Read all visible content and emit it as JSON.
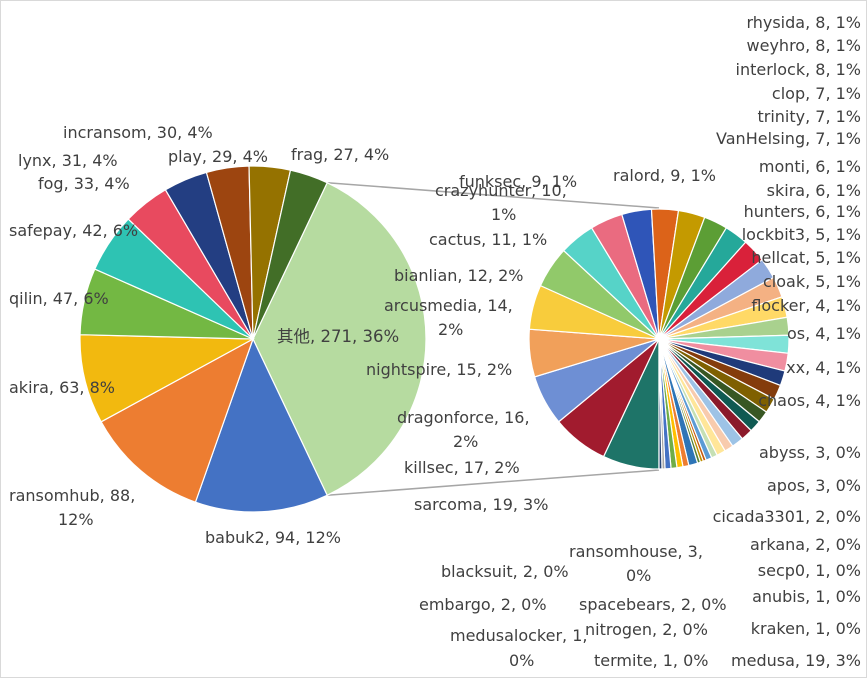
{
  "chart_data": {
    "type": "pie",
    "subtype": "pie-of-pie",
    "title": "",
    "main_pie": {
      "slices": [
        {
          "name": "其他",
          "value": 271,
          "percent": "36%",
          "color": "#b6dba0"
        },
        {
          "name": "babuk2",
          "value": 94,
          "percent": "12%",
          "color": "#4472c4"
        },
        {
          "name": "ransomhub",
          "value": 88,
          "percent": "12%",
          "color": "#ed7d31"
        },
        {
          "name": "akira",
          "value": 63,
          "percent": "8%",
          "color": "#f2b90f"
        },
        {
          "name": "qilin",
          "value": 47,
          "percent": "6%",
          "color": "#73b843"
        },
        {
          "name": "safepay",
          "value": 42,
          "percent": "6%",
          "color": "#2ec3b3"
        },
        {
          "name": "fog",
          "value": 33,
          "percent": "4%",
          "color": "#e84a5f"
        },
        {
          "name": "lynx",
          "value": 31,
          "percent": "4%",
          "color": "#233e82"
        },
        {
          "name": "incransom",
          "value": 30,
          "percent": "4%",
          "color": "#9d4510"
        },
        {
          "name": "play",
          "value": 29,
          "percent": "4%",
          "color": "#957200"
        },
        {
          "name": "frag",
          "value": 27,
          "percent": "4%",
          "color": "#426e27"
        }
      ]
    },
    "secondary_pie": {
      "slices": [
        {
          "name": "medusa",
          "value": 19,
          "percent": "3%",
          "color": "#1e7468"
        },
        {
          "name": "sarcoma",
          "value": 19,
          "percent": "3%",
          "color": "#a11b2e"
        },
        {
          "name": "killsec",
          "value": 17,
          "percent": "2%",
          "color": "#6e8fd4"
        },
        {
          "name": "dragonforce",
          "value": 16,
          "percent": "2%",
          "color": "#f1a05a"
        },
        {
          "name": "nightspire",
          "value": 15,
          "percent": "2%",
          "color": "#f8cc3c"
        },
        {
          "name": "arcusmedia",
          "value": 14,
          "percent": "2%",
          "color": "#91c96a"
        },
        {
          "name": "bianlian",
          "value": 12,
          "percent": "2%",
          "color": "#56d3c8"
        },
        {
          "name": "cactus",
          "value": 11,
          "percent": "1%",
          "color": "#ea6b80"
        },
        {
          "name": "crazyhunter",
          "value": 10,
          "percent": "1%",
          "color": "#2f55b8"
        },
        {
          "name": "funksec",
          "value": 9,
          "percent": "1%",
          "color": "#dc6319"
        },
        {
          "name": "ralord",
          "value": 9,
          "percent": "1%",
          "color": "#c49a00"
        },
        {
          "name": "rhysida",
          "value": 8,
          "percent": "1%",
          "color": "#5c9e35"
        },
        {
          "name": "weyhro",
          "value": 8,
          "percent": "1%",
          "color": "#25a89a"
        },
        {
          "name": "interlock",
          "value": 8,
          "percent": "1%",
          "color": "#d9213a"
        },
        {
          "name": "clop",
          "value": 7,
          "percent": "1%",
          "color": "#8faadc"
        },
        {
          "name": "trinity",
          "value": 7,
          "percent": "1%",
          "color": "#f4b183"
        },
        {
          "name": "VanHelsing",
          "value": 7,
          "percent": "1%",
          "color": "#ffd966"
        },
        {
          "name": "monti",
          "value": 6,
          "percent": "1%",
          "color": "#a9d18e"
        },
        {
          "name": "skira",
          "value": 6,
          "percent": "1%",
          "color": "#7fe3d8"
        },
        {
          "name": "hunters",
          "value": 6,
          "percent": "1%",
          "color": "#f08ea0"
        },
        {
          "name": "lockbit3",
          "value": 5,
          "percent": "1%",
          "color": "#1f3a7a"
        },
        {
          "name": "hellcat",
          "value": 5,
          "percent": "1%",
          "color": "#843c0c"
        },
        {
          "name": "cloak",
          "value": 5,
          "percent": "1%",
          "color": "#7f6000"
        },
        {
          "name": "flocker",
          "value": 4,
          "percent": "1%",
          "color": "#385723"
        },
        {
          "name": "…os",
          "value": 4,
          "percent": "1%",
          "color": "#0f5a52"
        },
        {
          "name": "…xx",
          "value": 4,
          "percent": "1%",
          "color": "#8b1a2b"
        },
        {
          "name": "chaos",
          "value": 4,
          "percent": "1%",
          "color": "#9dc3e6"
        },
        {
          "name": "abyss",
          "value": 3,
          "percent": "0%",
          "color": "#f8cbad"
        },
        {
          "name": "apos",
          "value": 3,
          "percent": "0%",
          "color": "#ffe699"
        },
        {
          "name": "cicada3301",
          "value": 2,
          "percent": "0%",
          "color": "#c5e0b4"
        },
        {
          "name": "arkana",
          "value": 2,
          "percent": "0%",
          "color": "#5b9bd5"
        },
        {
          "name": "secp0",
          "value": 1,
          "percent": "0%",
          "color": "#c55a11"
        },
        {
          "name": "anubis",
          "value": 1,
          "percent": "0%",
          "color": "#bf9000"
        },
        {
          "name": "kraken",
          "value": 1,
          "percent": "0%",
          "color": "#548235"
        },
        {
          "name": "ransomhouse",
          "value": 3,
          "percent": "0%",
          "color": "#2e75b6"
        },
        {
          "name": "blacksuit",
          "value": 2,
          "percent": "0%",
          "color": "#ed7d31"
        },
        {
          "name": "spacebears",
          "value": 2,
          "percent": "0%",
          "color": "#ffc000"
        },
        {
          "name": "embargo",
          "value": 2,
          "percent": "0%",
          "color": "#70ad47"
        },
        {
          "name": "nitrogen",
          "value": 2,
          "percent": "0%",
          "color": "#4472c4"
        },
        {
          "name": "medusalocker",
          "value": 1,
          "percent": "0%",
          "color": "#a5a5a5"
        },
        {
          "name": "termite",
          "value": 1,
          "percent": "0%",
          "color": "#264478"
        }
      ]
    },
    "labels": {
      "main": {
        "其他": "其他, 271, 36%",
        "babuk2": "babuk2, 94, 12%",
        "ransomhub_1": "ransomhub, 88,",
        "ransomhub_2": "12%",
        "akira": "akira, 63, 8%",
        "qilin": "qilin, 47, 6%",
        "safepay": "safepay, 42, 6%",
        "fog": "fog, 33, 4%",
        "lynx": "lynx, 31, 4%",
        "incransom": "incransom, 30, 4%",
        "play": "play, 29, 4%",
        "frag": "frag, 27, 4%"
      },
      "secondary": {
        "funksec": "funksec, 9, 1%",
        "crazyhunter_1": "crazyhunter, 10,",
        "crazyhunter_2": "1%",
        "ralord": "ralord, 9, 1%",
        "cactus": "cactus, 11, 1%",
        "bianlian": "bianlian, 12, 2%",
        "arcusmedia_1": "arcusmedia, 14,",
        "arcusmedia_2": "2%",
        "nightspire": "nightspire, 15, 2%",
        "dragonforce_1": "dragonforce, 16,",
        "dragonforce_2": "2%",
        "killsec": "killsec, 17, 2%",
        "sarcoma": "sarcoma, 19, 3%",
        "rhysida": "rhysida, 8, 1%",
        "weyhro": "weyhro, 8, 1%",
        "interlock": "interlock, 8, 1%",
        "clop": "clop, 7, 1%",
        "trinity": "trinity, 7, 1%",
        "vanhelsing": "VanHelsing, 7, 1%",
        "monti": "monti, 6, 1%",
        "skira": "skira, 6, 1%",
        "hunters": "hunters, 6, 1%",
        "lockbit3": "lockbit3, 5, 1%",
        "hellcat": "hellcat, 5, 1%",
        "cloak": "cloak, 5, 1%",
        "flocker": "flocker, 4, 1%",
        "os": "os, 4, 1%",
        "xx": "xx, 4, 1%",
        "chaos": "chaos, 4, 1%",
        "abyss": "abyss, 3, 0%",
        "apos": "apos, 3, 0%",
        "cicada3301": "cicada3301, 2, 0%",
        "arkana": "arkana, 2, 0%",
        "secp0": "secp0, 1, 0%",
        "anubis": "anubis, 1, 0%",
        "kraken": "kraken, 1, 0%",
        "medusa": "medusa, 19, 3%",
        "ransomhouse_1": "ransomhouse, 3,",
        "ransomhouse_2": "0%",
        "blacksuit": "blacksuit, 2, 0%",
        "spacebears": "spacebears, 2, 0%",
        "embargo": "embargo, 2, 0%",
        "nitrogen": "nitrogen, 2, 0%",
        "medusalocker_1": "medusalocker, 1,",
        "medusalocker_2": "0%",
        "termite": "termite, 1, 0%"
      }
    },
    "connector_color": "#a6a6a6"
  }
}
